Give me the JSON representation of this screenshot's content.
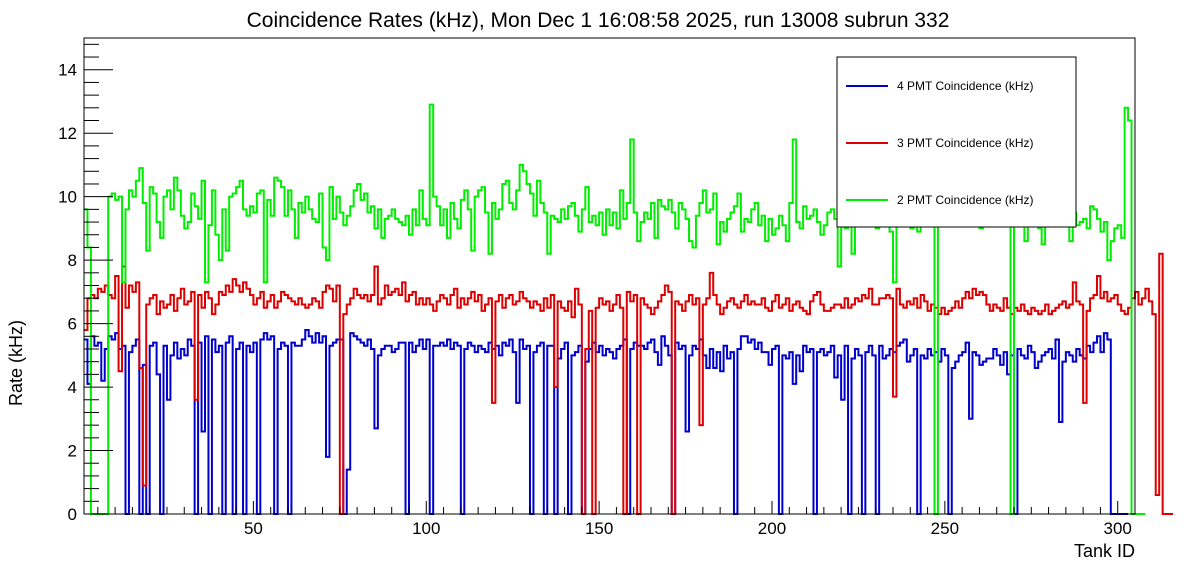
{
  "chart_data": {
    "type": "line",
    "title": "Coincidence Rates (kHz), Mon Dec  1 16:08:58 2025, run 13008 subrun 332",
    "xlabel": "Tank ID",
    "ylabel": "Rate (kHz)",
    "xlim": [
      1,
      305
    ],
    "ylim": [
      0,
      15
    ],
    "x_ticks": [
      50,
      100,
      150,
      200,
      250,
      300
    ],
    "y_ticks": [
      0,
      2,
      4,
      6,
      8,
      10,
      12,
      14
    ],
    "grid": false,
    "legend_position": "top-right",
    "series": [
      {
        "name": "4 PMT Coincidence (kHz)",
        "color": "#0000cc",
        "values": [
          5.5,
          4.1,
          5.6,
          5.3,
          5.4,
          4.2,
          5.2,
          5.6,
          5.5,
          5.7,
          5.2,
          5.3,
          0,
          5.1,
          5.3,
          5.5,
          0,
          4.7,
          0,
          5.3,
          5.4,
          4.4,
          0,
          5.3,
          3.6,
          5.0,
          5.4,
          4.9,
          5.2,
          5.0,
          5.5,
          5.3,
          0,
          5.4,
          2.6,
          5.6,
          0,
          5.5,
          5.1,
          5.3,
          0,
          5.4,
          5.6,
          0,
          5.2,
          5.4,
          0,
          5.3,
          5.1,
          5.4,
          0,
          5.5,
          5.7,
          5.5,
          5.6,
          0,
          5.2,
          5.4,
          5.3,
          0,
          5.4,
          5.3,
          5.3,
          5.5,
          5.8,
          5.6,
          5.4,
          5.7,
          5.4,
          5.6,
          1.8,
          5.3,
          5.4,
          5.5,
          5.5,
          0,
          1.4,
          5.7,
          5.6,
          5.5,
          5.4,
          5.3,
          5.5,
          5.2,
          2.7,
          5.0,
          5.2,
          5.3,
          5.3,
          5.1,
          5.2,
          5.4,
          5.4,
          0,
          5.4,
          5.1,
          5.3,
          5.5,
          5.2,
          5.5,
          0,
          5.3,
          5.3,
          5.4,
          5.3,
          5.5,
          5.2,
          5.4,
          5.3,
          0,
          5.2,
          5.4,
          5.3,
          5.1,
          5.3,
          5.2,
          5.1,
          5.4,
          5.2,
          5.3,
          5.0,
          5.4,
          5.3,
          5.5,
          5.1,
          3.5,
          5.5,
          5.2,
          5.3,
          0,
          5.1,
          5.3,
          5.4,
          0,
          5.3,
          5.3,
          0,
          4.9,
          5.2,
          5.4,
          0,
          5.0,
          5.1,
          5.3,
          0,
          4.8,
          5.2,
          5.4,
          5.1,
          5.3,
          5.0,
          5.2,
          5.1,
          4.9,
          5.2,
          5.3,
          5.5,
          0,
          5.2,
          5.4,
          5.3,
          5.3,
          5.2,
          5.4,
          5.5,
          5.1,
          4.7,
          5.6,
          5.3,
          5.0,
          0,
          5.4,
          5.2,
          5.3,
          2.6,
          5.0,
          5.3,
          5.2,
          5.5,
          5.0,
          4.6,
          5.2,
          4.6,
          5.1,
          4.5,
          5.3,
          4.9,
          5.1,
          0,
          5.2,
          5.6,
          5.6,
          5.4,
          5.5,
          5.2,
          5.4,
          5.1,
          5.1,
          4.7,
          5.2,
          5.3,
          0,
          5.0,
          4.9,
          5.1,
          4.1,
          5.0,
          4.5,
          5.3,
          5.1,
          5.2,
          0,
          5.1,
          5.2,
          5.0,
          5.1,
          5.3,
          4.3,
          5.0,
          3.6,
          5.3,
          0,
          4.9,
          5.2,
          5.0,
          0,
          5.1,
          5.3,
          5.0,
          0,
          5.3,
          4.9,
          5.0,
          5.2,
          5.1,
          5.3,
          5.4,
          5.5,
          4.8,
          5.0,
          5.2,
          0,
          5.0,
          4.9,
          5.2,
          5.0,
          5.1,
          4.8,
          5.2,
          5.0,
          0,
          4.6,
          4.8,
          5.0,
          5.1,
          5.4,
          3.0,
          5.1,
          5.0,
          4.7,
          4.8,
          4.9,
          4.9,
          5.2,
          5.0,
          4.7,
          5.1,
          4.4,
          5.0,
          0,
          5.2,
          5.0,
          4.9,
          5.3,
          5.1,
          4.6,
          4.8,
          5.0,
          5.1,
          5.2,
          4.9,
          5.5,
          2.9,
          4.8,
          5.1,
          5.0,
          4.8,
          5.2,
          5.0,
          4.9,
          5.3,
          5.1,
          5.4,
          5.6,
          5.1,
          5.7,
          5.5,
          0,
          0,
          0,
          0,
          0
        ]
      },
      {
        "name": "3 PMT Coincidence (kHz)",
        "color": "#dd0000",
        "values": [
          5.8,
          6.8,
          6.9,
          6.8,
          7.1,
          7.0,
          7.2,
          6.9,
          6.8,
          7.5,
          4.5,
          7.8,
          6.5,
          7.2,
          7.0,
          7.3,
          4.6,
          0.9,
          6.6,
          6.8,
          6.9,
          6.3,
          6.7,
          6.5,
          6.6,
          6.9,
          6.4,
          6.8,
          7.1,
          6.6,
          6.7,
          7.0,
          3.6,
          6.9,
          6.5,
          7.0,
          6.8,
          6.3,
          6.6,
          7.0,
          6.9,
          7.2,
          7.0,
          7.4,
          7.2,
          7.0,
          7.3,
          7.1,
          6.9,
          6.6,
          6.8,
          7.0,
          6.5,
          6.7,
          6.9,
          6.5,
          6.7,
          7.0,
          6.9,
          6.8,
          6.7,
          6.6,
          6.8,
          6.6,
          6.5,
          6.6,
          6.8,
          6.7,
          6.5,
          7.0,
          7.2,
          7.1,
          6.7,
          7.2,
          0,
          6.3,
          6.6,
          6.8,
          7.1,
          6.9,
          6.8,
          6.9,
          6.7,
          6.9,
          7.8,
          6.6,
          6.8,
          7.2,
          6.9,
          7.0,
          7.1,
          6.9,
          7.3,
          6.7,
          6.9,
          7.0,
          6.6,
          6.8,
          6.6,
          6.8,
          6.6,
          6.4,
          6.7,
          6.9,
          6.8,
          6.6,
          6.9,
          7.1,
          6.5,
          6.8,
          6.6,
          6.8,
          7.0,
          6.7,
          6.9,
          6.4,
          6.6,
          6.8,
          3.5,
          6.7,
          6.9,
          6.5,
          6.8,
          6.9,
          6.6,
          6.7,
          7.0,
          6.8,
          6.7,
          6.5,
          6.7,
          6.6,
          6.4,
          6.8,
          6.5,
          6.9,
          4.0,
          6.7,
          6.5,
          6.4,
          6.7,
          6.2,
          7.1,
          6.6,
          0,
          5.2,
          6.4,
          0,
          6.5,
          6.8,
          6.6,
          6.7,
          6.4,
          6.6,
          6.9,
          6.5,
          0,
          7.0,
          6.7,
          6.9,
          0,
          6.8,
          6.6,
          6.5,
          6.3,
          6.5,
          6.7,
          6.9,
          7.2,
          7.0,
          0,
          6.7,
          6.6,
          6.4,
          6.7,
          6.9,
          6.6,
          6.8,
          2.8,
          6.6,
          6.8,
          7.6,
          6.9,
          6.6,
          6.3,
          6.5,
          6.7,
          6.8,
          6.6,
          6.5,
          6.7,
          6.9,
          6.6,
          6.7,
          6.6,
          6.6,
          6.8,
          6.5,
          6.4,
          6.7,
          6.9,
          6.5,
          6.6,
          6.8,
          6.4,
          6.6,
          6.7,
          6.5,
          6.4,
          6.3,
          6.7,
          6.9,
          7.0,
          6.6,
          6.4,
          6.4,
          6.5,
          6.6,
          6.6,
          6.5,
          6.8,
          6.5,
          6.6,
          6.8,
          6.7,
          6.9,
          6.8,
          7.1,
          6.6,
          6.6,
          6.8,
          6.8,
          6.9,
          6.8,
          3.7,
          7.1,
          6.6,
          6.5,
          6.7,
          6.6,
          6.8,
          6.5,
          6.9,
          6.7,
          6.4,
          6.6,
          6.5,
          6.3,
          6.5,
          6.3,
          6.4,
          6.5,
          6.7,
          6.5,
          6.8,
          7.0,
          6.8,
          7.1,
          6.9,
          7.0,
          6.9,
          6.6,
          6.4,
          6.6,
          6.5,
          6.4,
          6.8,
          6.5,
          6.3,
          6.5,
          6.4,
          6.6,
          6.4,
          6.3,
          6.5,
          6.4,
          6.3,
          6.4,
          6.6,
          6.3,
          6.4,
          6.5,
          6.6,
          6.7,
          6.5,
          6.6,
          7.3,
          6.7,
          6.6,
          3.5,
          6.4,
          6.8,
          6.9,
          7.5,
          6.8,
          7.0,
          6.7,
          6.8,
          6.9,
          6.6,
          6.4,
          6.3,
          6.5,
          6.8,
          7.0,
          6.6,
          6.8,
          7.1,
          6.7,
          6.3,
          0.6,
          8.2,
          0,
          0,
          0
        ]
      },
      {
        "name": "2 PMT Coincidence (kHz)",
        "color": "#00ee00",
        "values": [
          9.6,
          8.4,
          0,
          0,
          0,
          0,
          0,
          10.0,
          10.1,
          9.9,
          10.0,
          7.3,
          9.6,
          10.2,
          10.0,
          10.5,
          10.9,
          9.8,
          8.3,
          10.3,
          10.1,
          9.2,
          8.7,
          10.0,
          10.2,
          9.6,
          10.6,
          10.2,
          9.4,
          9.0,
          9.2,
          10.1,
          9.7,
          9.3,
          10.5,
          7.3,
          9.1,
          10.2,
          8.8,
          8.0,
          9.6,
          8.3,
          10.0,
          10.1,
          10.3,
          10.5,
          9.6,
          9.4,
          9.7,
          9.5,
          10.1,
          10.2,
          7.3,
          9.9,
          9.4,
          10.6,
          10.5,
          10.3,
          9.4,
          10.2,
          9.6,
          8.7,
          9.8,
          9.5,
          10.0,
          9.6,
          9.3,
          9.2,
          10.1,
          8.4,
          8.0,
          10.3,
          9.3,
          10.0,
          9.5,
          9.1,
          9.4,
          9.7,
          10.2,
          10.4,
          9.9,
          10.1,
          9.5,
          9.7,
          9.0,
          9.6,
          8.7,
          9.3,
          9.4,
          9.6,
          9.3,
          9.2,
          9.1,
          9.4,
          8.8,
          9.6,
          9.1,
          10.2,
          9.3,
          9.1,
          12.9,
          10.0,
          9.7,
          9.1,
          9.6,
          8.7,
          9.8,
          9.3,
          9.0,
          9.9,
          10.2,
          9.6,
          8.3,
          10.0,
          10.2,
          10.3,
          9.5,
          8.2,
          9.8,
          9.3,
          9.6,
          10.4,
          10.5,
          9.8,
          9.6,
          10.2,
          11.0,
          10.8,
          10.4,
          10.1,
          9.4,
          10.5,
          9.8,
          9.5,
          8.2,
          9.4,
          9.3,
          9.2,
          9.6,
          9.3,
          9.7,
          9.8,
          9.4,
          8.9,
          9.6,
          10.3,
          9.2,
          9.4,
          9.1,
          9.5,
          8.8,
          9.6,
          9.1,
          9.5,
          9.0,
          10.2,
          9.3,
          9.8,
          11.8,
          9.5,
          8.6,
          9.2,
          9.5,
          9.3,
          9.8,
          8.7,
          9.9,
          9.7,
          9.6,
          9.9,
          9.5,
          9.0,
          9.8,
          9.6,
          9.3,
          8.6,
          8.4,
          9.4,
          9.8,
          10.2,
          9.5,
          9.6,
          10.1,
          8.5,
          9.2,
          8.9,
          9.3,
          9.5,
          9.7,
          10.1,
          8.9,
          9.3,
          9.2,
          9.6,
          9.8,
          9.1,
          9.4,
          8.6,
          9.3,
          8.8,
          9.0,
          9.4,
          9.1,
          8.6,
          9.8,
          11.8,
          9.2,
          9.0,
          9.7,
          9.3,
          9.4,
          9.6,
          9.2,
          8.8,
          9.1,
          9.5,
          9.6,
          9.3,
          7.8,
          9.4,
          9.0,
          9.6,
          8.2,
          9.7,
          10.1,
          9.3,
          9.5,
          9.6,
          11.6,
          9.0,
          9.2,
          9.4,
          9.6,
          8.9,
          7.3,
          9.3,
          9.1,
          9.7,
          9.5,
          9.0,
          9.6,
          8.9,
          9.2,
          9.8,
          9.5,
          9.3,
          0,
          9.7,
          9.2,
          9.6,
          10.2,
          9.6,
          9.9,
          9.7,
          9.3,
          12.8,
          9.4,
          9.6,
          9.9,
          9.0,
          9.7,
          9.3,
          9.4,
          9.3,
          9.4,
          10.7,
          9.5,
          9.2,
          0,
          9.8,
          9.4,
          9.6,
          8.6,
          9.7,
          9.8,
          9.9,
          9.0,
          8.5,
          9.5,
          9.3,
          9.1,
          9.2,
          9.4,
          9.1,
          9.3,
          8.6,
          9.5,
          9.1,
          9.2,
          9.3,
          9.0,
          9.7,
          9.6,
          9.3,
          8.9,
          9.2,
          8.0,
          8.6,
          9.0,
          9.1,
          8.7,
          12.8,
          12.4,
          0,
          0,
          0,
          0
        ]
      }
    ]
  }
}
